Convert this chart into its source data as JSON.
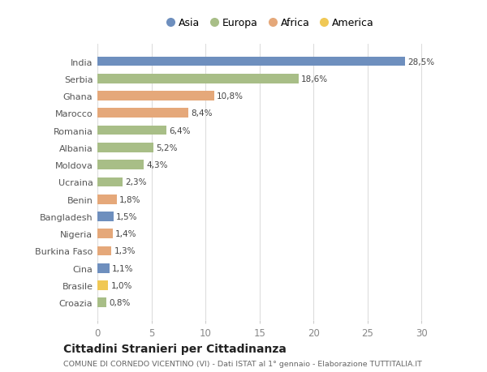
{
  "countries": [
    "India",
    "Serbia",
    "Ghana",
    "Marocco",
    "Romania",
    "Albania",
    "Moldova",
    "Ucraina",
    "Benin",
    "Bangladesh",
    "Nigeria",
    "Burkina Faso",
    "Cina",
    "Brasile",
    "Croazia"
  ],
  "values": [
    28.5,
    18.6,
    10.8,
    8.4,
    6.4,
    5.2,
    4.3,
    2.3,
    1.8,
    1.5,
    1.4,
    1.3,
    1.1,
    1.0,
    0.8
  ],
  "labels": [
    "28,5%",
    "18,6%",
    "10,8%",
    "8,4%",
    "6,4%",
    "5,2%",
    "4,3%",
    "2,3%",
    "1,8%",
    "1,5%",
    "1,4%",
    "1,3%",
    "1,1%",
    "1,0%",
    "0,8%"
  ],
  "colors": [
    "#6e8fbe",
    "#a8be87",
    "#e5a87a",
    "#e5a87a",
    "#a8be87",
    "#a8be87",
    "#a8be87",
    "#a8be87",
    "#e5a87a",
    "#6e8fbe",
    "#e5a87a",
    "#e5a87a",
    "#6e8fbe",
    "#f0c855",
    "#a8be87"
  ],
  "legend_labels": [
    "Asia",
    "Europa",
    "Africa",
    "America"
  ],
  "legend_colors": [
    "#6e8fbe",
    "#a8be87",
    "#e5a87a",
    "#f0c855"
  ],
  "title": "Cittadini Stranieri per Cittadinanza",
  "subtitle": "COMUNE DI CORNEDO VICENTINO (VI) - Dati ISTAT al 1° gennaio - Elaborazione TUTTITALIA.IT",
  "xlim": [
    0,
    32
  ],
  "xticks": [
    0,
    5,
    10,
    15,
    20,
    25,
    30
  ],
  "background_color": "#ffffff",
  "grid_color": "#dddddd",
  "bar_height": 0.55
}
